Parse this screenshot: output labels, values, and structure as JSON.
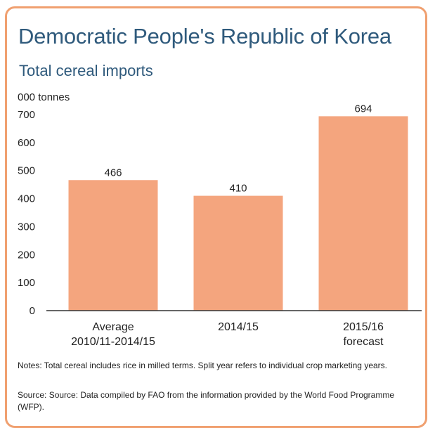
{
  "chart_data": {
    "type": "bar",
    "title": "Democratic People's Republic of Korea",
    "subtitle": "Total cereal imports",
    "ylabel": "000 tonnes",
    "xlabel": "",
    "categories": [
      [
        "Average",
        "2010/11-2014/15"
      ],
      [
        "2014/15"
      ],
      [
        "2015/16",
        "forecast"
      ]
    ],
    "values": [
      466,
      410,
      694
    ],
    "data_labels": [
      "466",
      "410",
      "694"
    ],
    "ylim": [
      0,
      700
    ],
    "yticks": [
      0,
      100,
      200,
      300,
      400,
      500,
      600,
      700
    ],
    "bar_color": "#f4a57e",
    "grid": false,
    "legend": "none"
  },
  "notes": "Notes: Total cereal includes rice in milled terms. Split year refers to individual crop marketing years.",
  "source": "Source: Source: Data compiled by FAO from the information provided by the World Food Programme (WFP).",
  "colors": {
    "border": "#f0a070",
    "title": "#2f5a7c",
    "text": "#222222"
  }
}
